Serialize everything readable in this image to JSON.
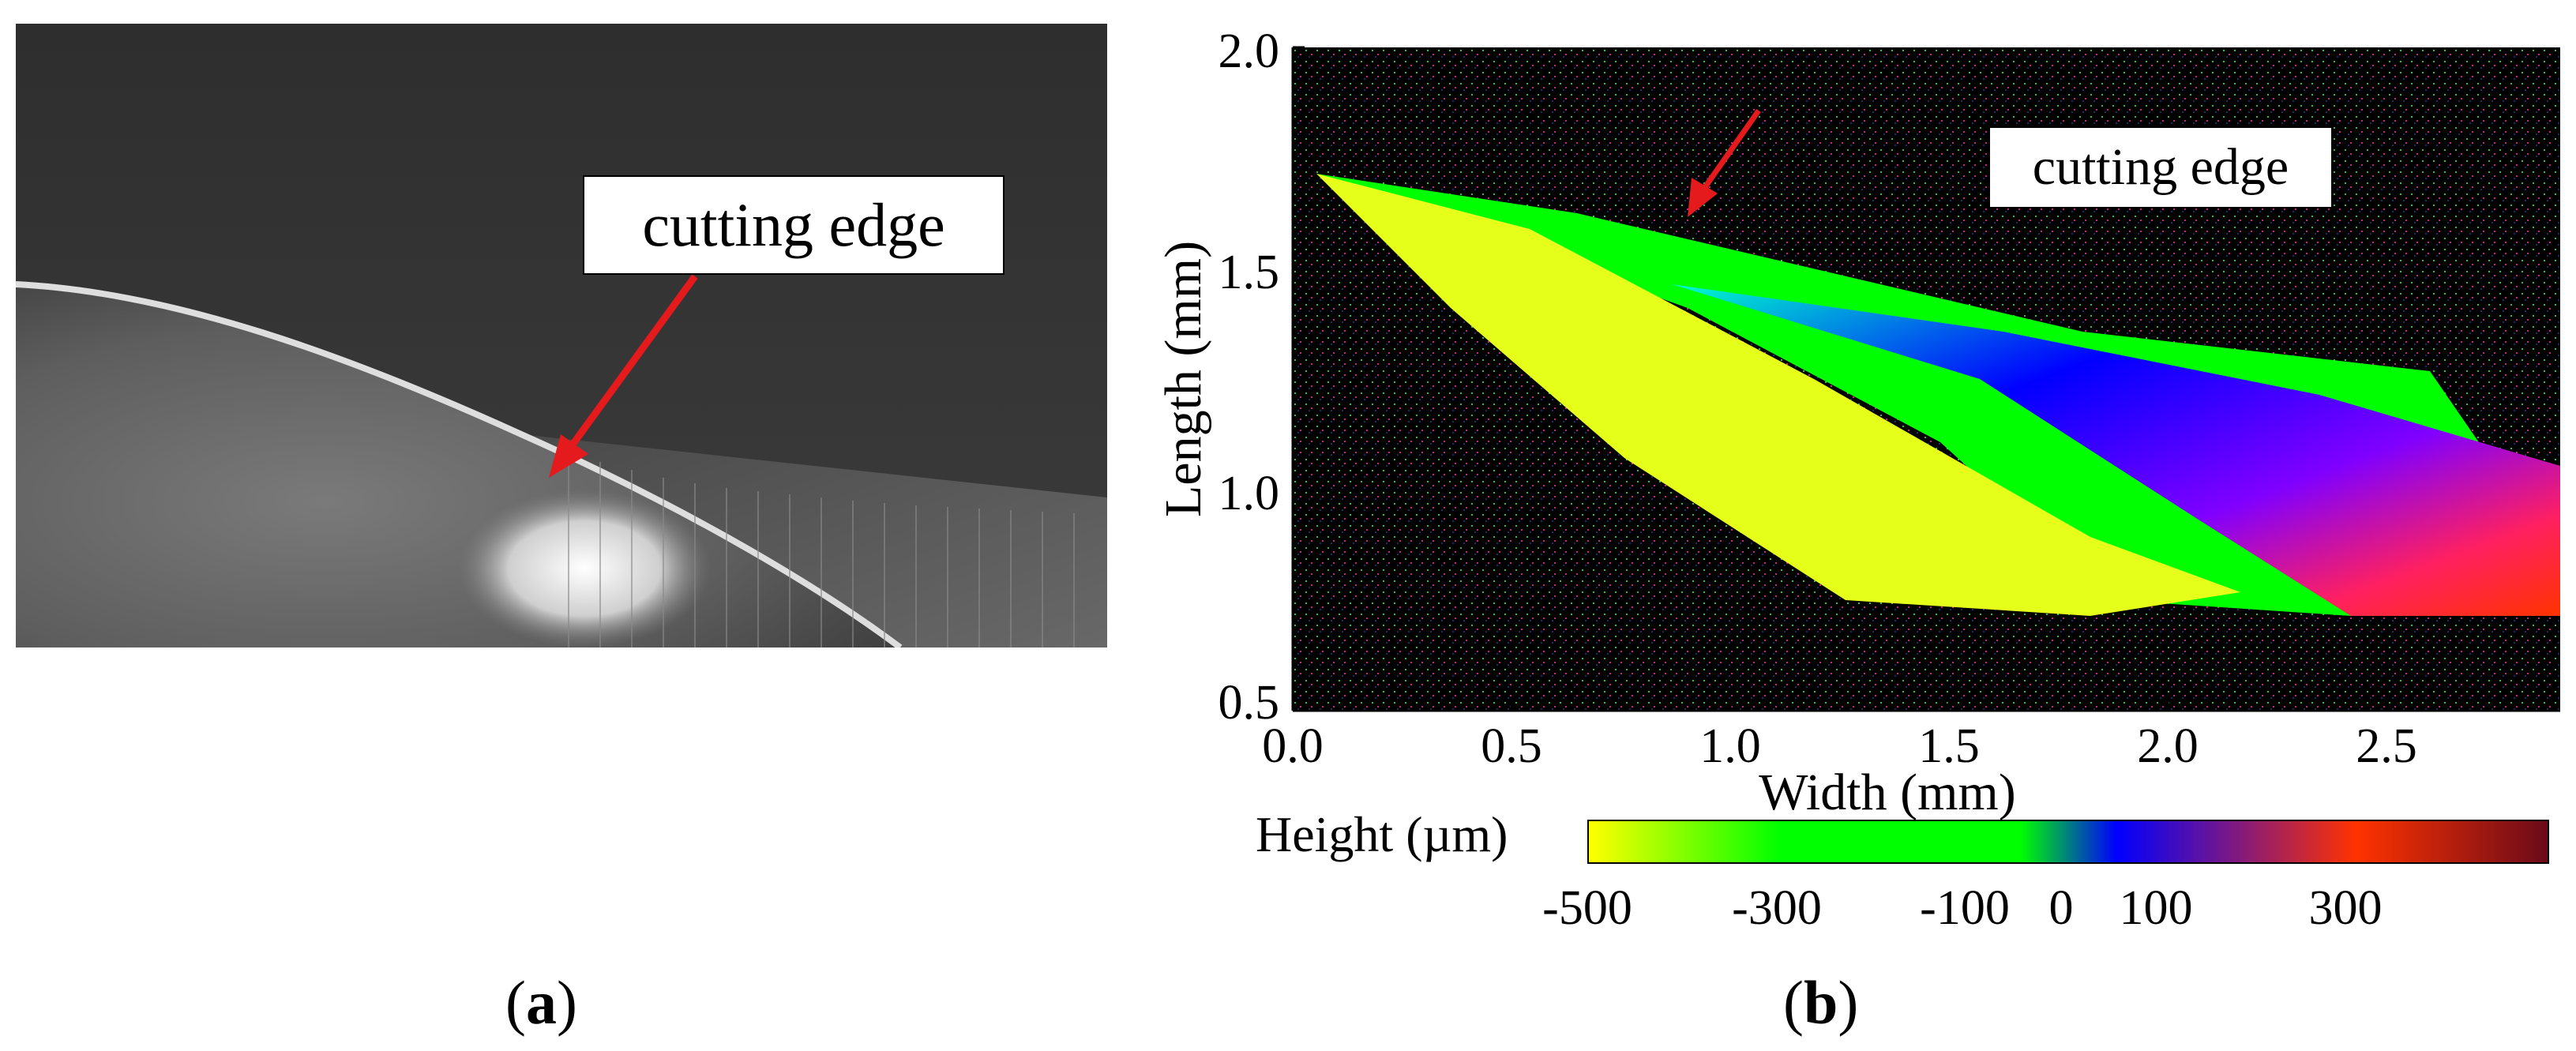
{
  "panel_a": {
    "annotation": "cutting edge",
    "caption_letter": "a"
  },
  "panel_b": {
    "annotation": "cutting edge",
    "caption_letter": "b",
    "colorbar_label": "Height (µm)",
    "colorbar_ticks": [
      "-500",
      "-300",
      "-100",
      "0",
      "100",
      "300"
    ],
    "colors": {
      "arrow": "#e41a1c",
      "low": "#ffff00",
      "mid": "#00ff00",
      "zero": "#0000ff",
      "high": "#ff3300",
      "top": "#6b0a1a"
    }
  },
  "chart_data": {
    "type": "heatmap",
    "title": "",
    "xlabel": "Width (mm)",
    "ylabel": "Length (mm)",
    "xlim": [
      0.0,
      2.9
    ],
    "ylim": [
      0.5,
      2.0
    ],
    "x_ticks": [
      "0.0",
      "0.5",
      "1.0",
      "1.5",
      "2.0",
      "2.5"
    ],
    "y_ticks": [
      "0.5",
      "1.0",
      "1.5",
      "2.0"
    ],
    "colorbar": {
      "label": "Height (µm)",
      "range": [
        -500,
        500
      ],
      "ticks": [
        -500,
        -300,
        -100,
        0,
        100,
        300
      ]
    },
    "annotation": {
      "text": "cutting edge",
      "x": 1.3,
      "y": 1.3
    }
  }
}
